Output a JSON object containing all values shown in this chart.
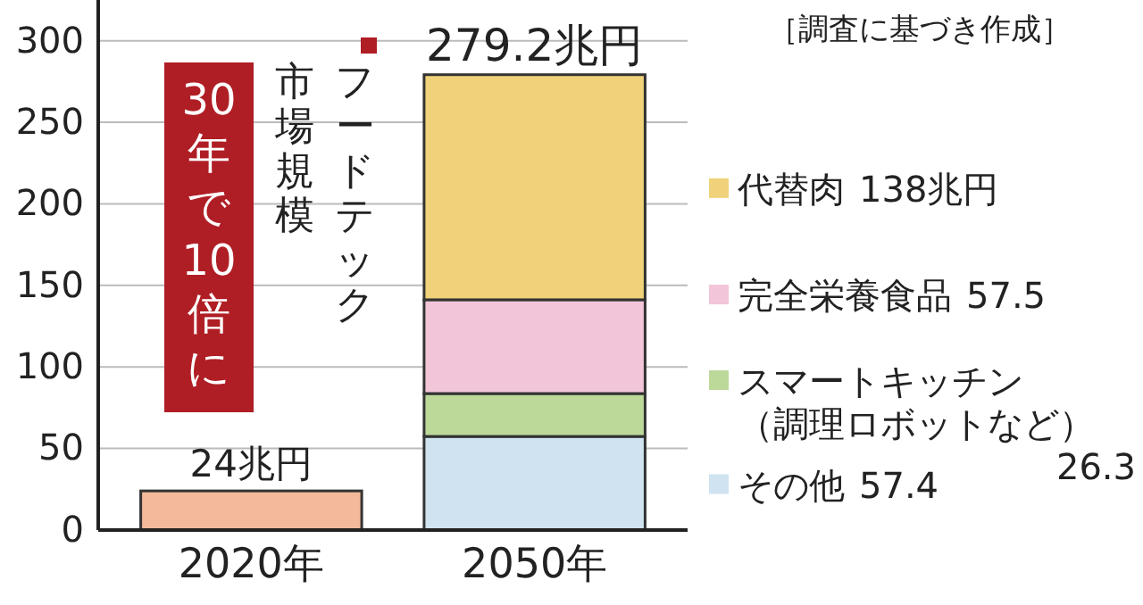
{
  "chart_data": {
    "type": "bar",
    "stacked": true,
    "title": "フードテック市場規模",
    "annotations": [
      "30年で10倍に",
      "［調査に基づき作成］",
      "57.4",
      "26.3",
      "57.5",
      "138兆円"
    ],
    "categories": [
      "2020年",
      "2050年"
    ],
    "series": [
      {
        "color": "#f4b99a",
        "values": [
          24,
          null
        ]
      },
      {
        "name": "その他",
        "color": "#cfe3f0",
        "values": [
          null,
          57.4
        ]
      },
      {
        "name": "スマートキッチン（調理ロボットなど）",
        "color": "#bcd99a",
        "values": [
          null,
          26.3
        ]
      },
      {
        "name": "完全栄養食品",
        "color": "#f2c6d8",
        "values": [
          null,
          57.5
        ]
      },
      {
        "name": "代替肉",
        "color": "#f0d27a",
        "values": [
          null,
          138
        ]
      }
    ],
    "totals": [
      "24兆円",
      "279.2兆円"
    ],
    "ylim": [
      0,
      325
    ],
    "yticks": [
      0,
      50,
      100,
      150,
      200,
      250,
      300
    ],
    "grid": "y",
    "legend": "right"
  }
}
